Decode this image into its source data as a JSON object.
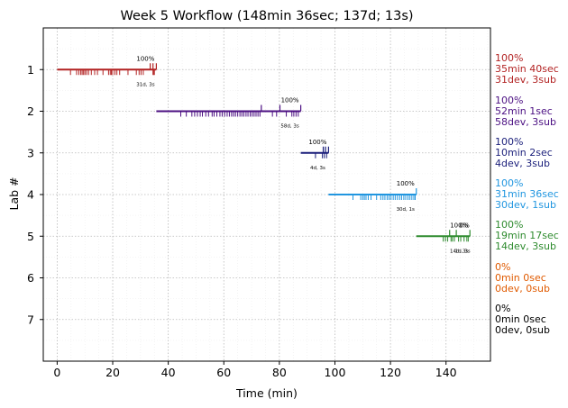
{
  "chart_data": {
    "type": "timeline",
    "title": "Week 5 Workflow (148min 36sec; 137d; 13s)",
    "xlabel": "Time (min)",
    "ylabel": "Lab #",
    "xlim": [
      -5,
      156
    ],
    "ylim": [
      8,
      0
    ],
    "xticks": [
      0,
      20,
      40,
      60,
      80,
      100,
      120,
      140
    ],
    "yticks": [
      1,
      2,
      3,
      4,
      5,
      6,
      7
    ],
    "grid": true,
    "labs": [
      {
        "lab": 1,
        "color": "#b22222",
        "start": 0,
        "end": 35.7,
        "pct": "100%",
        "counts": "31d, 3s",
        "side": [
          "100%",
          "35min 40sec",
          "31dev, 3sub"
        ],
        "devs": [
          4.8,
          7,
          7.8,
          8.5,
          9,
          9.5,
          10,
          10.6,
          11.3,
          12.3,
          13.5,
          14.5,
          16.5,
          18.5,
          19.1,
          19.5,
          20,
          20.8,
          21.5,
          22.5,
          25.5,
          28.5,
          29.5,
          30.2,
          31,
          34.5,
          34.8,
          35
        ],
        "subs": [
          33.5,
          34.5,
          35.7
        ]
      },
      {
        "lab": 2,
        "color": "#4b0f82",
        "start": 35.7,
        "end": 87.7,
        "pct": "100%",
        "counts": "58d, 3s",
        "side": [
          "100%",
          "52min 1sec",
          "58dev, 3sub"
        ],
        "devs": [
          44.5,
          46.5,
          48.5,
          49.5,
          50.5,
          51.5,
          52.3,
          53.5,
          54.5,
          55.8,
          56.5,
          57.5,
          58.6,
          59.4,
          60.3,
          61.2,
          62,
          62.8,
          63.5,
          64.2,
          65,
          65.8,
          66.5,
          67.2,
          68,
          68.7,
          69.5,
          70.2,
          70.9,
          71.6,
          72.3,
          73,
          77.5,
          79,
          82.5,
          84.5,
          85.2,
          86,
          86.8
        ],
        "subs": [
          73.5,
          80.2,
          87.7
        ]
      },
      {
        "lab": 3,
        "color": "#1a1e7a",
        "start": 87.7,
        "end": 97.7,
        "pct": "100%",
        "counts": "4d, 3s",
        "side": [
          "100%",
          "10min 2sec",
          "4dev, 3sub"
        ],
        "devs": [
          93,
          95.5,
          96.2,
          97
        ],
        "subs": [
          95.8,
          96.6,
          97.7
        ]
      },
      {
        "lab": 4,
        "color": "#2196e0",
        "start": 97.7,
        "end": 129.3,
        "pct": "100%",
        "counts": "30d, 1s",
        "side": [
          "100%",
          "31min 36sec",
          "30dev, 1sub"
        ],
        "devs": [
          106.5,
          109.3,
          110,
          110.6,
          111.2,
          112,
          113,
          115,
          116.5,
          117.3,
          118,
          118.8,
          119.5,
          120.2,
          121,
          121.7,
          122.5,
          123.3,
          124,
          124.8,
          125.5,
          126.3,
          127,
          127.7,
          128.4,
          128.9
        ],
        "subs": [
          129.3
        ]
      },
      {
        "lab": 5,
        "color": "#2e8b2e",
        "start": 129.3,
        "end": 148.6,
        "pct": "100%",
        "counts": "14d, 3s",
        "pct_extra": "0%",
        "counts_extra": "1d, 3s",
        "side": [
          "100%",
          "19min 17sec",
          "14dev, 3sub"
        ],
        "devs": [
          139,
          139.8,
          140.6,
          141.8,
          142.3,
          143,
          144.5,
          145.3,
          146.5,
          147.5,
          148
        ],
        "subs": [
          141.3,
          143.7,
          148.6
        ]
      },
      {
        "lab": 6,
        "color": "#e05a00",
        "side": [
          "0%",
          "0min 0sec",
          "0dev, 0sub"
        ]
      },
      {
        "lab": 7,
        "color": "#000000",
        "side": [
          "0%",
          "0min 0sec",
          "0dev, 0sub"
        ]
      }
    ]
  }
}
